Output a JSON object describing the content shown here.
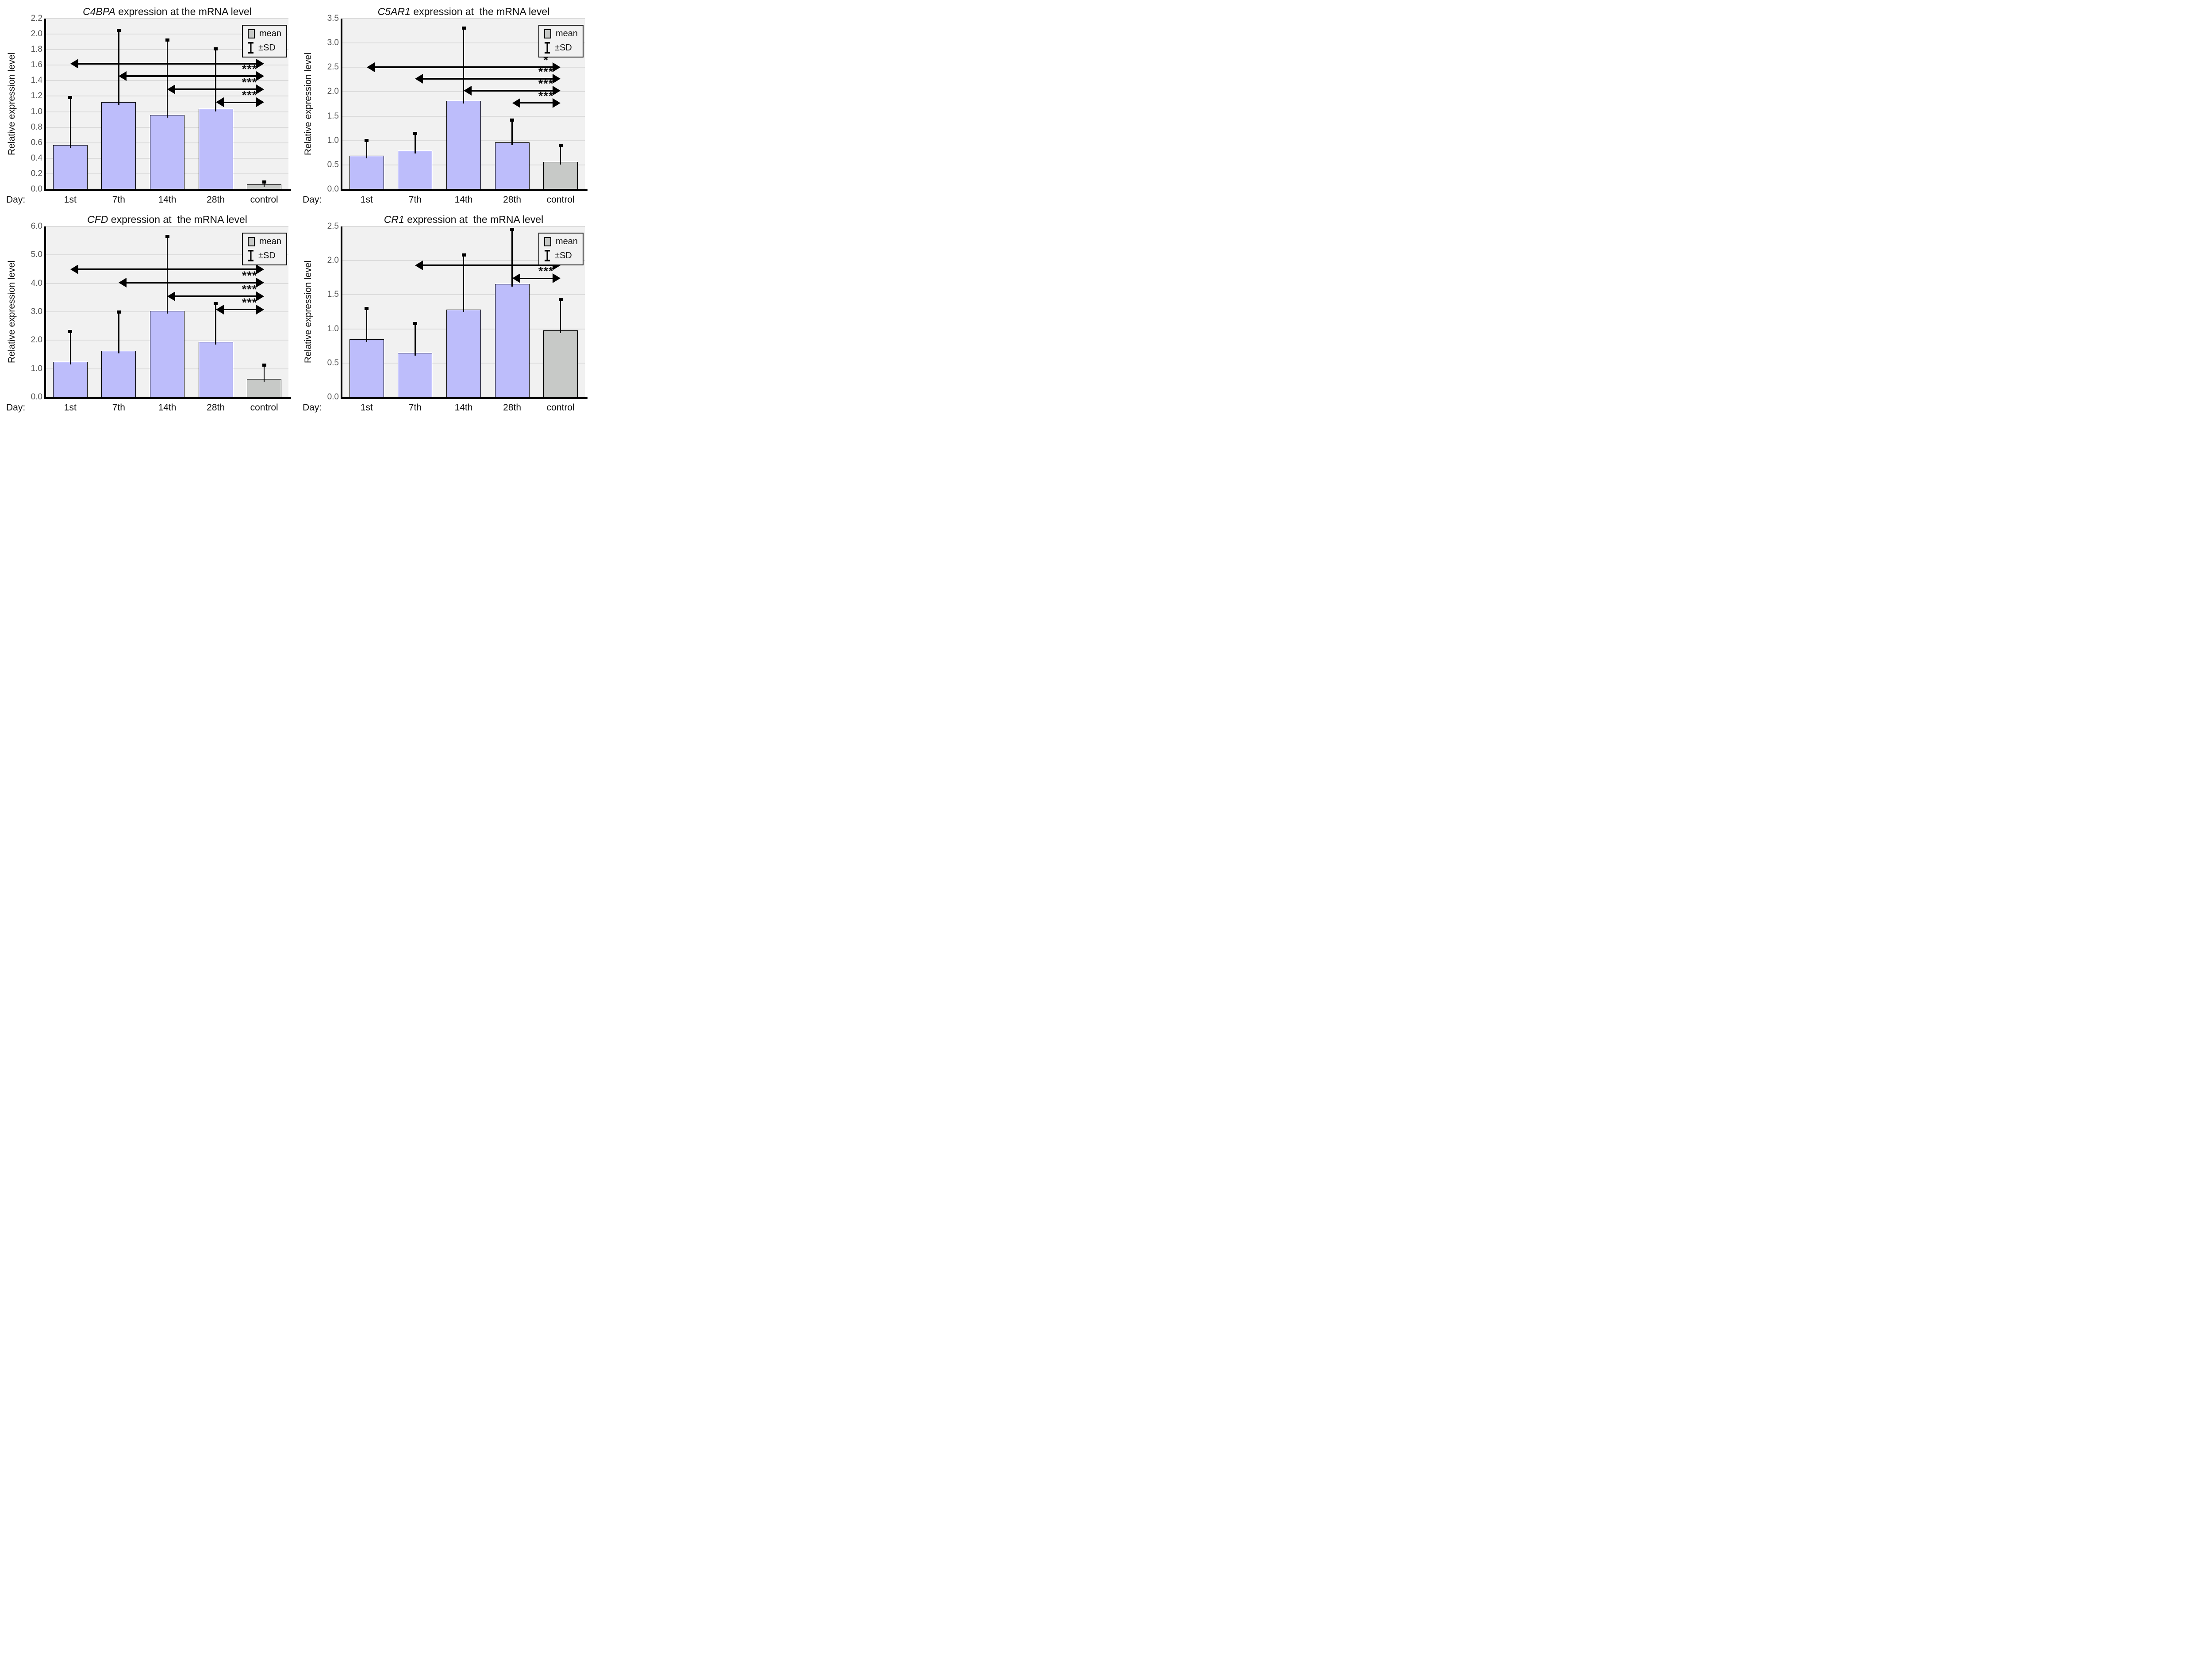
{
  "axis": {
    "ylabel": "Relative expression level",
    "x_prefix": "Day:"
  },
  "legend": {
    "mean": "mean",
    "sd": "±SD"
  },
  "colors": {
    "day_bar_fill": "#bdbdfb",
    "control_bar_fill": "#c7c9c7",
    "bar_border": "#000000",
    "plot_background": "#f1f1f1",
    "gridline": "#dcdcdc",
    "tick_text": "#555555",
    "annotation": "#000000"
  },
  "chart_data": [
    {
      "type": "bar",
      "gene": "C4BPA",
      "title_rest": " expression at the mRNA level",
      "ylabel": "Relative expression level",
      "ylim": [
        0,
        2.2
      ],
      "ytick_labels": [
        "2.2",
        "2.0",
        "1.8",
        "1.6",
        "1.4",
        "1.2",
        "1.0",
        "0.8",
        "0.6",
        "0.4",
        "0.2",
        "0.0"
      ],
      "categories": [
        "1st",
        "7th",
        "14th",
        "28th",
        "control"
      ],
      "bar_roles": [
        "day",
        "day",
        "day",
        "day",
        "control"
      ],
      "means": [
        0.57,
        1.12,
        0.96,
        1.04,
        0.06
      ],
      "sd_top": [
        1.19,
        2.06,
        1.93,
        1.82,
        0.1
      ],
      "annotations": [
        {
          "from": 0,
          "to": 4,
          "y": 1.62,
          "label": "***",
          "weight": 4
        },
        {
          "from": 1,
          "to": 4,
          "y": 1.46,
          "label": "***",
          "weight": 4
        },
        {
          "from": 2,
          "to": 4,
          "y": 1.29,
          "label": "***",
          "weight": 4
        },
        {
          "from": 3,
          "to": 4,
          "y": 1.12,
          "label": "***",
          "weight": 3
        }
      ]
    },
    {
      "type": "bar",
      "gene": "C5AR1",
      "title_rest": " expression at  the mRNA level",
      "ylabel": "Relative expression level",
      "ylim": [
        0,
        3.5
      ],
      "ytick_labels": [
        "3.5",
        "3.0",
        "2.5",
        "2.0",
        "1.5",
        "1.0",
        "0.5",
        "0.0"
      ],
      "categories": [
        "1st",
        "7th",
        "14th",
        "28th",
        "control"
      ],
      "bar_roles": [
        "day",
        "day",
        "day",
        "day",
        "control"
      ],
      "means": [
        0.69,
        0.79,
        1.81,
        0.96,
        0.56
      ],
      "sd_top": [
        1.02,
        1.16,
        3.32,
        1.43,
        0.91
      ],
      "annotations": [
        {
          "from": 0,
          "to": 4,
          "y": 2.5,
          "label": "*",
          "weight": 4
        },
        {
          "from": 1,
          "to": 4,
          "y": 2.27,
          "label": "***",
          "weight": 4
        },
        {
          "from": 2,
          "to": 4,
          "y": 2.02,
          "label": "***",
          "weight": 4
        },
        {
          "from": 3,
          "to": 4,
          "y": 1.77,
          "label": "***",
          "weight": 3
        }
      ]
    },
    {
      "type": "bar",
      "gene": "CFD",
      "title_rest": " expression at  the mRNA level",
      "ylabel": "Relative expression level",
      "ylim": [
        0,
        6.0
      ],
      "ytick_labels": [
        "6.0",
        "5.0",
        "4.0",
        "3.0",
        "2.0",
        "1.0",
        "0.0"
      ],
      "categories": [
        "1st",
        "7th",
        "14th",
        "28th",
        "control"
      ],
      "bar_roles": [
        "day",
        "day",
        "day",
        "day",
        "control"
      ],
      "means": [
        1.25,
        1.63,
        3.03,
        1.95,
        0.63
      ],
      "sd_top": [
        2.33,
        3.02,
        5.68,
        3.31,
        1.15
      ],
      "annotations": [
        {
          "from": 0,
          "to": 4,
          "y": 4.49,
          "label": "***",
          "weight": 4
        },
        {
          "from": 1,
          "to": 4,
          "y": 4.02,
          "label": "***",
          "weight": 4
        },
        {
          "from": 2,
          "to": 4,
          "y": 3.55,
          "label": "***",
          "weight": 4
        },
        {
          "from": 3,
          "to": 4,
          "y": 3.08,
          "label": "***",
          "weight": 3
        }
      ]
    },
    {
      "type": "bar",
      "gene": "CR1",
      "title_rest": " expression at  the mRNA level",
      "ylabel": "Relative expression level",
      "ylim": [
        0,
        2.5
      ],
      "ytick_labels": [
        "2.5",
        "2.0",
        "1.5",
        "1.0",
        "0.5",
        "0.0"
      ],
      "categories": [
        "1st",
        "7th",
        "14th",
        "28th",
        "control"
      ],
      "bar_roles": [
        "day",
        "day",
        "day",
        "day",
        "control"
      ],
      "means": [
        0.85,
        0.65,
        1.28,
        1.66,
        0.98
      ],
      "sd_top": [
        1.31,
        1.09,
        2.09,
        2.47,
        1.44
      ],
      "annotations": [
        {
          "from": 1,
          "to": 4,
          "y": 1.93,
          "label": "***",
          "weight": 4
        },
        {
          "from": 3,
          "to": 4,
          "y": 1.74,
          "label": "***",
          "weight": 3
        }
      ]
    }
  ]
}
